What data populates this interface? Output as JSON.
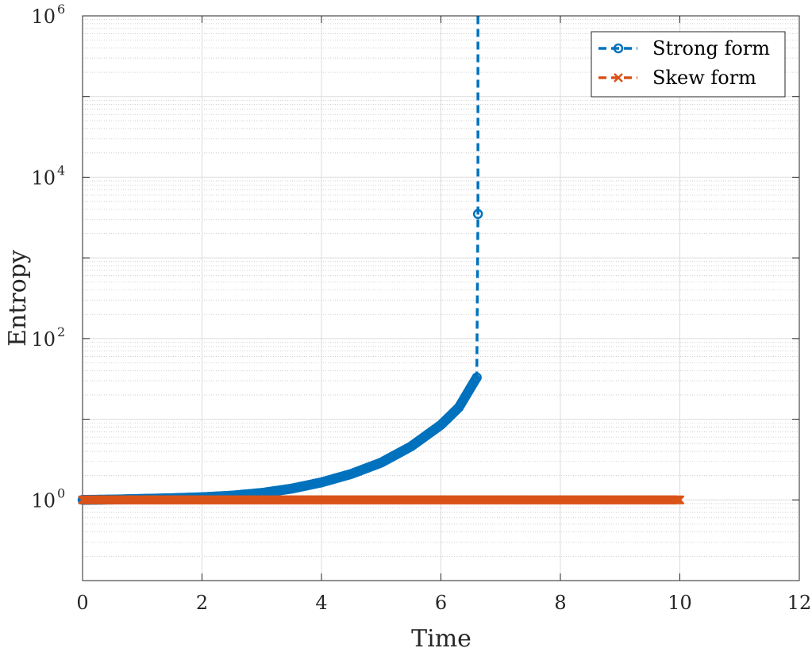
{
  "chart_data": {
    "type": "line",
    "xlabel": "Time",
    "ylabel": "Entropy",
    "xlim": [
      0,
      12
    ],
    "ylim": [
      0.1,
      1000000
    ],
    "yscale": "log",
    "grid": true,
    "minor_grid": true,
    "legend_position": "top-right",
    "x_ticks": [
      "0",
      "2",
      "4",
      "6",
      "8",
      "10",
      "12"
    ],
    "y_ticks": [
      {
        "base": "10",
        "exp": "0"
      },
      {
        "base": "10",
        "exp": "2"
      },
      {
        "base": "10",
        "exp": "4"
      },
      {
        "base": "10",
        "exp": "6"
      }
    ],
    "series": [
      {
        "name": "Strong form",
        "color": "#0072BD",
        "marker": "circle",
        "line_style": "dashed",
        "x": [
          0,
          0.5,
          1,
          1.5,
          2,
          2.5,
          3,
          3.5,
          4,
          4.5,
          5,
          5.5,
          6,
          6.3,
          6.6,
          6.62,
          6.62
        ],
        "y": [
          1,
          1.01,
          1.03,
          1.05,
          1.08,
          1.13,
          1.22,
          1.38,
          1.65,
          2.1,
          2.9,
          4.6,
          8.5,
          14,
          33,
          3500,
          1000000
        ]
      },
      {
        "name": "Skew form",
        "color": "#D95319",
        "marker": "x",
        "line_style": "dashed",
        "x": [
          0,
          1,
          2,
          3,
          4,
          5,
          6,
          7,
          8,
          9,
          10
        ],
        "y": [
          1,
          1,
          1,
          1,
          1,
          1,
          1,
          1,
          1,
          1,
          1
        ]
      }
    ]
  }
}
